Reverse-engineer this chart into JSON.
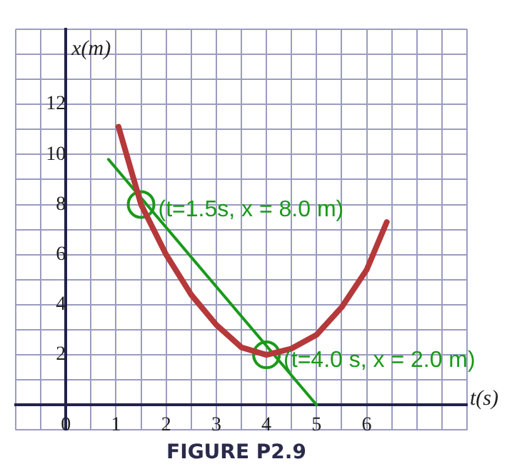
{
  "chart_data": {
    "type": "line",
    "title": "FIGURE P2.9",
    "xlabel": "t(s)",
    "ylabel": "x(m)",
    "xlim": [
      -1,
      8
    ],
    "ylim": [
      -1,
      15
    ],
    "xticks": [
      {
        "value": -1,
        "label": null
      },
      {
        "value": -0.5,
        "label": null
      },
      0,
      {
        "value": 0.5,
        "label": null
      },
      1,
      {
        "value": 1.5,
        "label": null
      },
      2,
      {
        "value": 2.5,
        "label": null
      },
      3,
      {
        "value": 3.5,
        "label": null
      },
      4,
      {
        "value": 4.5,
        "label": null
      },
      5,
      {
        "value": 5.5,
        "label": null
      },
      6,
      {
        "value": 6.5,
        "label": null
      },
      {
        "value": 7,
        "label": null
      },
      {
        "value": 7.5,
        "label": null
      },
      {
        "value": 8,
        "label": null
      }
    ],
    "yticks": [
      {
        "value": -1,
        "label": null
      },
      {
        "value": 0,
        "label": null
      },
      {
        "value": 1,
        "label": null
      },
      2,
      {
        "value": 3,
        "label": null
      },
      4,
      {
        "value": 5,
        "label": null
      },
      6,
      {
        "value": 7,
        "label": null
      },
      8,
      {
        "value": 9,
        "label": null
      },
      10,
      {
        "value": 11,
        "label": null
      },
      12,
      {
        "value": 13,
        "label": null
      },
      {
        "value": 14,
        "label": null
      },
      {
        "value": 15,
        "label": null
      }
    ],
    "grid": true,
    "legend": false,
    "series": [
      {
        "type": "line",
        "color": "#b5383a",
        "marker": "none",
        "x": [
          1.05,
          1.5,
          2,
          2.5,
          3,
          3.5,
          4,
          4.5,
          5,
          5.5,
          6,
          6.4
        ],
        "values": [
          11.1,
          8.0,
          6.0,
          4.4,
          3.2,
          2.3,
          2.0,
          2.25,
          2.8,
          3.9,
          5.4,
          7.3
        ]
      },
      {
        "type": "line",
        "color": "#1a9a1a",
        "marker": "none",
        "x": [
          0.85,
          5.0
        ],
        "values": [
          9.8,
          0
        ]
      },
      {
        "type": "scatter",
        "color": "#1a9a1a",
        "marker": "circle",
        "x": [
          1.5,
          4.0
        ],
        "values": [
          8.0,
          2.0
        ]
      }
    ],
    "annotations": [
      {
        "text": "(t=1.5s, x = 8.0 m)",
        "x": 1.5,
        "y": 8.0
      },
      {
        "text": "(t=4.0 s, x = 2.0 m)",
        "x": 4.0,
        "y": 2.0
      }
    ]
  }
}
